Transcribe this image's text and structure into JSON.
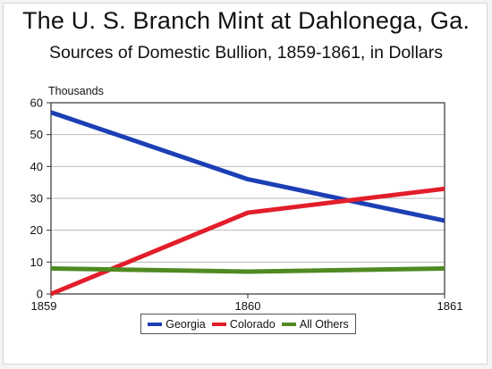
{
  "chart_data": {
    "type": "line",
    "title": "The U. S. Branch Mint at Dahlonega, Ga.",
    "subtitle": "Sources of Domestic Bullion, 1859-1861, in Dollars",
    "ylabel": "Thousands",
    "xlabel": "",
    "categories": [
      "1859",
      "1860",
      "1861"
    ],
    "ylim": [
      0,
      60
    ],
    "yticks": [
      0,
      10,
      20,
      30,
      40,
      50,
      60
    ],
    "grid": "horizontal",
    "legend_position": "bottom-center",
    "series": [
      {
        "name": "Georgia",
        "values": [
          57,
          36,
          23
        ],
        "color": "#1c3fb5"
      },
      {
        "name": "Colorado",
        "values": [
          0,
          25.5,
          33
        ],
        "color": "#e21e2a"
      },
      {
        "name": "All Others",
        "values": [
          8,
          7,
          8
        ],
        "color": "#4f8a22"
      }
    ]
  }
}
